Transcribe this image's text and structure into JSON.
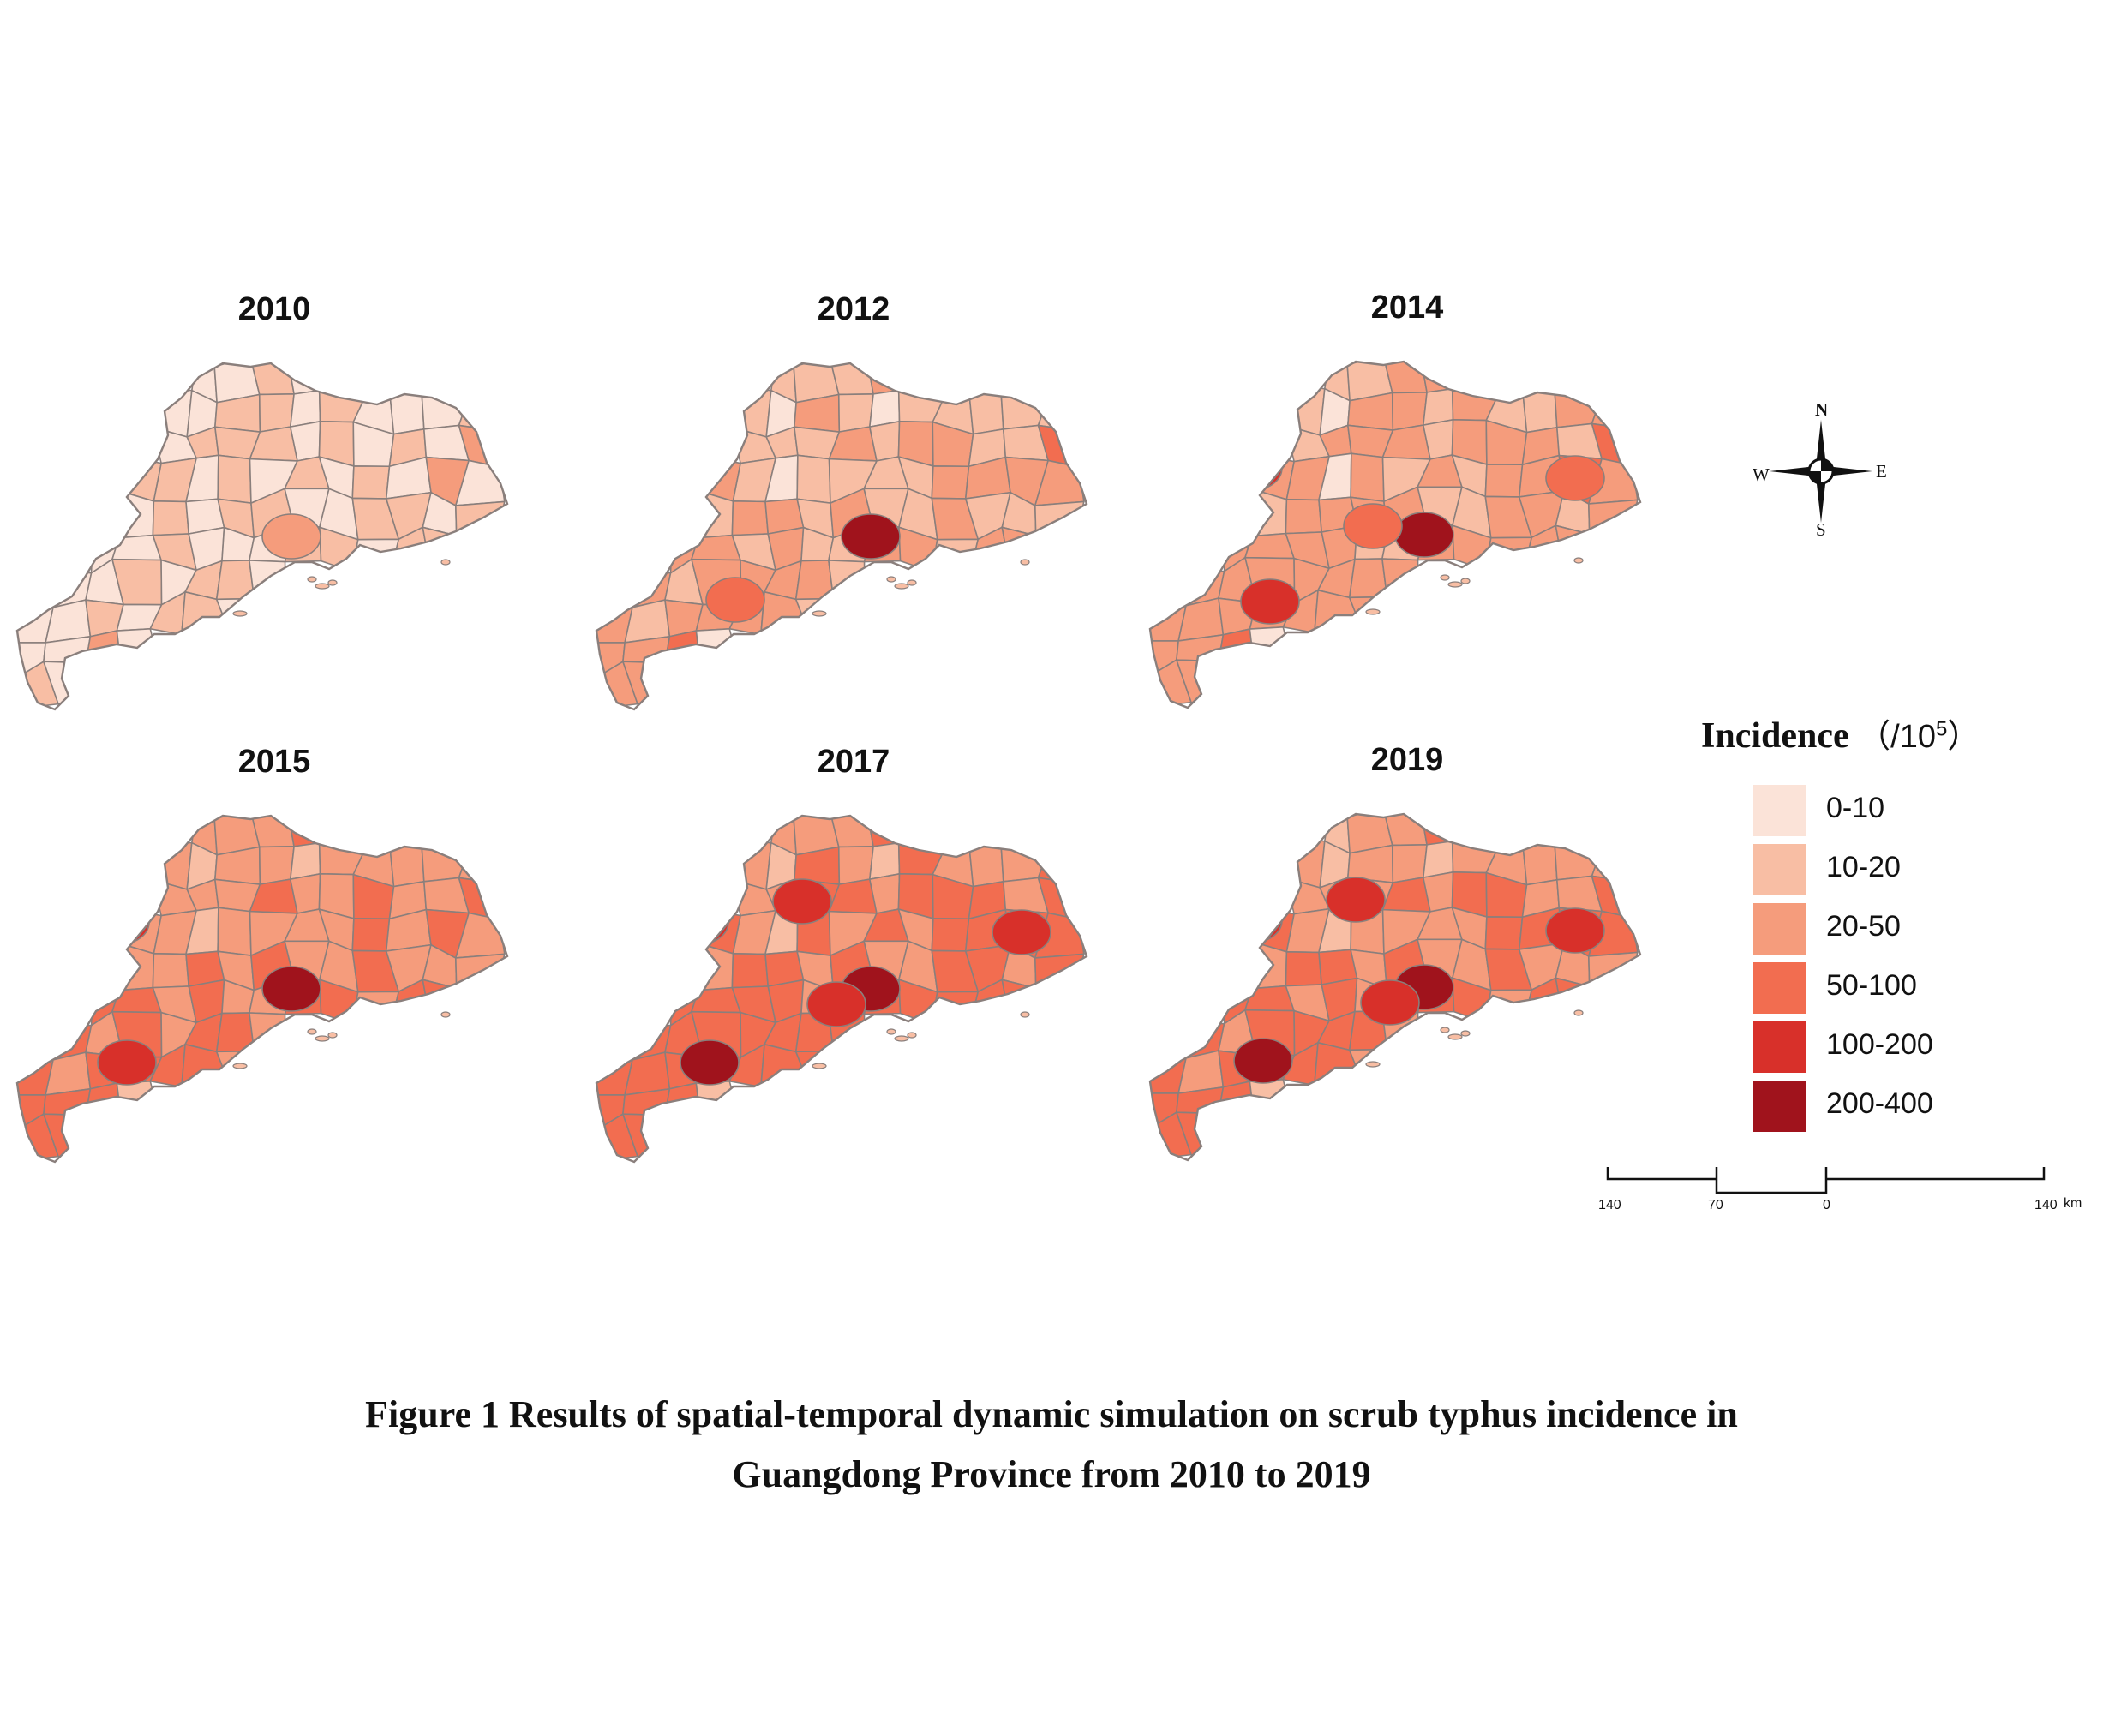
{
  "panels": [
    {
      "title": "2010",
      "regions": [
        0,
        0,
        1,
        0,
        0,
        0,
        1,
        1,
        0,
        1,
        0,
        0,
        0,
        1,
        0,
        1,
        1,
        1,
        0,
        1,
        0,
        1,
        0,
        2,
        1,
        1,
        0,
        1,
        0,
        1,
        0,
        1,
        0,
        2,
        0,
        0,
        1,
        0,
        1,
        1,
        0,
        0,
        1,
        1,
        0,
        1,
        0,
        0,
        1,
        0,
        0,
        0,
        1,
        1,
        0,
        1,
        1,
        0,
        0,
        1,
        0,
        1,
        1,
        0,
        0,
        0,
        1,
        0,
        1,
        1,
        0,
        0,
        0,
        2,
        0,
        1,
        0,
        1,
        1,
        0,
        0,
        0,
        1,
        0,
        1,
        1,
        0,
        0,
        1,
        0,
        1,
        0,
        0,
        1,
        0,
        1,
        1,
        0,
        0,
        1,
        0,
        1,
        0,
        1,
        1,
        0,
        0,
        0,
        1,
        1,
        0,
        1,
        0,
        1,
        0,
        1,
        1,
        0,
        0,
        1,
        1,
        0,
        1,
        0,
        1,
        0,
        1,
        2,
        1,
        0,
        0,
        1,
        1,
        0,
        1,
        0,
        1,
        0,
        1,
        1,
        2,
        1,
        0,
        1,
        1,
        1,
        0,
        0,
        1,
        0,
        1,
        2,
        1,
        0,
        1,
        1,
        1,
        0,
        2,
        1,
        1,
        1,
        0,
        2,
        1,
        1,
        1,
        1,
        2,
        2,
        1,
        2,
        1,
        1,
        1,
        1,
        2,
        1,
        2,
        2,
        2,
        1,
        1,
        1,
        1,
        1,
        1,
        2,
        2,
        1,
        2,
        1,
        1,
        0,
        1,
        1,
        2,
        1,
        1,
        1
      ],
      "hotspots": [
        [
          8.0,
          5.15,
          2
        ]
      ]
    },
    {
      "title": "2012",
      "regions": [
        1,
        1,
        1,
        2,
        1,
        0,
        2,
        1,
        0,
        1,
        1,
        1,
        1,
        1,
        1,
        1,
        1,
        2,
        1,
        2,
        2,
        1,
        1,
        3,
        2,
        1,
        0,
        1,
        1,
        1,
        1,
        2,
        2,
        2,
        2,
        1,
        2,
        2,
        1,
        2,
        1,
        1,
        2,
        1,
        1,
        1,
        2,
        2,
        1,
        2,
        1,
        1,
        2,
        2,
        1,
        2,
        2,
        2,
        1,
        2,
        2,
        2,
        2,
        1,
        2,
        1,
        2,
        2,
        2,
        2,
        1,
        2,
        2,
        3,
        0,
        2,
        2,
        2,
        2,
        2,
        1,
        2,
        2,
        2,
        2,
        2,
        1,
        2,
        2,
        2,
        2,
        1,
        1,
        2,
        2,
        2,
        2,
        2,
        2,
        2,
        2,
        1,
        1,
        2,
        2,
        1,
        1,
        2,
        2,
        2,
        2,
        2,
        1,
        2,
        2,
        2,
        2,
        2,
        2,
        2,
        2,
        2,
        2,
        2,
        1,
        1,
        2,
        3,
        2,
        2,
        2,
        2,
        2,
        2,
        2,
        1,
        2,
        2,
        2,
        2,
        2,
        2,
        2,
        2,
        2,
        2,
        2,
        2,
        2,
        1,
        2,
        3,
        2,
        2,
        2,
        2,
        2,
        2,
        3,
        2,
        2,
        2,
        1,
        2,
        2,
        2,
        2,
        2,
        2,
        2,
        2,
        2,
        2,
        2,
        2,
        2,
        2,
        2,
        2,
        3,
        2,
        2,
        2,
        2,
        2,
        1,
        2,
        2,
        2,
        2,
        2,
        2,
        2,
        1,
        2,
        2,
        2,
        2,
        2,
        2
      ],
      "hotspots": [
        [
          8.0,
          5.15,
          5
        ],
        [
          4.05,
          7.0,
          3
        ]
      ]
    },
    {
      "title": "2014",
      "regions": [
        1,
        1,
        2,
        2,
        1,
        0,
        2,
        2,
        1,
        2,
        1,
        1,
        2,
        2,
        1,
        2,
        2,
        2,
        1,
        2,
        2,
        2,
        1,
        3,
        2,
        2,
        0,
        2,
        1,
        2,
        1,
        2,
        2,
        3,
        2,
        1,
        2,
        2,
        2,
        2,
        1,
        1,
        2,
        2,
        1,
        2,
        2,
        2,
        2,
        2,
        1,
        1,
        2,
        2,
        2,
        2,
        2,
        2,
        2,
        2,
        2,
        2,
        2,
        2,
        2,
        2,
        2,
        2,
        2,
        2,
        2,
        2,
        2,
        3,
        0,
        2,
        2,
        2,
        2,
        2,
        2,
        2,
        2,
        2,
        2,
        2,
        2,
        2,
        2,
        2,
        2,
        2,
        2,
        2,
        2,
        2,
        2,
        2,
        2,
        2,
        2,
        2,
        2,
        2,
        2,
        2,
        2,
        2,
        2,
        2,
        2,
        2,
        2,
        2,
        2,
        2,
        2,
        2,
        2,
        2,
        2,
        2,
        2,
        2,
        2,
        2,
        2,
        3,
        2,
        2,
        2,
        2,
        2,
        2,
        2,
        2,
        2,
        2,
        2,
        2,
        2,
        2,
        2,
        2,
        2,
        2,
        2,
        2,
        2,
        2,
        2,
        3,
        2,
        2,
        2,
        2,
        2,
        2,
        3,
        2,
        2,
        2,
        2,
        2,
        2,
        2,
        2,
        2,
        2,
        2,
        2,
        2,
        2,
        2,
        2,
        2,
        2,
        2,
        2,
        3,
        2,
        2,
        2,
        2,
        2,
        2,
        2,
        2,
        2,
        2,
        2,
        2,
        2,
        2,
        2,
        2,
        2,
        2,
        2,
        2
      ],
      "hotspots": [
        [
          8.0,
          5.15,
          5
        ],
        [
          3.0,
          3.2,
          4
        ],
        [
          3.5,
          7.1,
          4
        ],
        [
          6.5,
          4.9,
          3
        ],
        [
          12.4,
          3.5,
          3
        ]
      ]
    },
    {
      "title": "2015",
      "regions": [
        2,
        2,
        2,
        3,
        2,
        1,
        2,
        2,
        1,
        2,
        2,
        2,
        2,
        2,
        2,
        2,
        2,
        3,
        2,
        2,
        3,
        2,
        2,
        3,
        2,
        2,
        1,
        2,
        2,
        2,
        2,
        3,
        2,
        3,
        2,
        2,
        2,
        3,
        2,
        3,
        2,
        2,
        3,
        2,
        2,
        2,
        3,
        3,
        2,
        3,
        2,
        2,
        3,
        3,
        2,
        3,
        3,
        3,
        2,
        3,
        2,
        3,
        3,
        2,
        3,
        2,
        3,
        3,
        3,
        3,
        2,
        3,
        3,
        3,
        1,
        3,
        3,
        3,
        3,
        3,
        2,
        3,
        3,
        3,
        3,
        3,
        2,
        3,
        3,
        3,
        3,
        2,
        2,
        3,
        3,
        3,
        3,
        3,
        3,
        3,
        3,
        2,
        2,
        3,
        3,
        2,
        2,
        3,
        3,
        3,
        3,
        3,
        2,
        3,
        3,
        3,
        3,
        3,
        3,
        3,
        3,
        3,
        3,
        3,
        2,
        2,
        3,
        3,
        3,
        3,
        3,
        3,
        3,
        3,
        3,
        2,
        3,
        3,
        3,
        3,
        3,
        3,
        3,
        3,
        3,
        3,
        3,
        3,
        3,
        2,
        3,
        3,
        3,
        3,
        3,
        3,
        3,
        3,
        3,
        3,
        3,
        3,
        2,
        3,
        3,
        3,
        3,
        3,
        3,
        3,
        3,
        3,
        3,
        3,
        3,
        3,
        3,
        3,
        3,
        3,
        3,
        3,
        3,
        3,
        3,
        2,
        3,
        3,
        3,
        3,
        3,
        3,
        3,
        2,
        3,
        3,
        3,
        3,
        3,
        3
      ],
      "hotspots": [
        [
          8.0,
          5.15,
          5
        ],
        [
          3.0,
          3.2,
          4
        ],
        [
          3.2,
          7.3,
          4
        ]
      ]
    },
    {
      "title": "2017",
      "regions": [
        2,
        2,
        2,
        3,
        2,
        1,
        3,
        2,
        1,
        3,
        2,
        2,
        2,
        3,
        2,
        2,
        3,
        3,
        2,
        3,
        3,
        3,
        2,
        3,
        3,
        2,
        1,
        3,
        2,
        3,
        2,
        3,
        3,
        3,
        3,
        2,
        3,
        3,
        2,
        3,
        2,
        2,
        3,
        3,
        2,
        3,
        3,
        3,
        3,
        3,
        2,
        2,
        3,
        3,
        3,
        3,
        3,
        3,
        3,
        3,
        3,
        3,
        3,
        3,
        3,
        3,
        3,
        3,
        3,
        3,
        3,
        3,
        3,
        3,
        1,
        3,
        3,
        3,
        3,
        3,
        3,
        3,
        3,
        3,
        3,
        3,
        3,
        3,
        3,
        3,
        3,
        3,
        3,
        3,
        3,
        3,
        3,
        3,
        3,
        3,
        3,
        3,
        3,
        3,
        3,
        3,
        3,
        3,
        3,
        3,
        3,
        3,
        3,
        3,
        3,
        3,
        3,
        3,
        3,
        3,
        3,
        3,
        3,
        3,
        3,
        3,
        3,
        3,
        3,
        3,
        3,
        3,
        3,
        3,
        3,
        3,
        3,
        3,
        3,
        3,
        3,
        3,
        3,
        3,
        3,
        3,
        3,
        3,
        3,
        3,
        3,
        3,
        3,
        3,
        3,
        3,
        3,
        3,
        3,
        3,
        3,
        3,
        3,
        3,
        3,
        3,
        3,
        3,
        3,
        3,
        3,
        3,
        3,
        3,
        3,
        3,
        3,
        3,
        3,
        3,
        3,
        3,
        3,
        3,
        3,
        3,
        3,
        3,
        3,
        3,
        3,
        3,
        3,
        3,
        3,
        3,
        3,
        3,
        3,
        3
      ],
      "hotspots": [
        [
          8.0,
          5.15,
          5
        ],
        [
          3.0,
          3.2,
          4
        ],
        [
          6.0,
          2.6,
          4
        ],
        [
          3.3,
          7.3,
          5
        ],
        [
          7.0,
          5.6,
          4
        ],
        [
          12.4,
          3.5,
          4
        ]
      ]
    },
    {
      "title": "2019",
      "regions": [
        1,
        2,
        2,
        3,
        2,
        1,
        2,
        2,
        1,
        2,
        2,
        2,
        2,
        2,
        2,
        2,
        2,
        3,
        2,
        3,
        3,
        2,
        2,
        3,
        3,
        2,
        1,
        2,
        2,
        2,
        2,
        3,
        3,
        3,
        3,
        2,
        3,
        3,
        2,
        3,
        2,
        2,
        3,
        2,
        2,
        2,
        3,
        3,
        2,
        3,
        2,
        2,
        3,
        3,
        2,
        3,
        3,
        3,
        2,
        3,
        3,
        3,
        3,
        2,
        3,
        2,
        3,
        3,
        3,
        3,
        2,
        3,
        3,
        3,
        1,
        3,
        3,
        3,
        3,
        3,
        2,
        3,
        3,
        3,
        3,
        3,
        2,
        3,
        3,
        3,
        3,
        2,
        2,
        3,
        3,
        3,
        3,
        3,
        3,
        3,
        3,
        2,
        2,
        3,
        3,
        2,
        2,
        3,
        3,
        3,
        3,
        3,
        2,
        3,
        3,
        3,
        3,
        3,
        3,
        3,
        3,
        3,
        3,
        3,
        2,
        2,
        3,
        3,
        3,
        3,
        3,
        3,
        3,
        3,
        3,
        2,
        3,
        3,
        3,
        3,
        3,
        3,
        3,
        3,
        3,
        3,
        3,
        3,
        3,
        2,
        3,
        3,
        3,
        3,
        3,
        3,
        3,
        3,
        3,
        3,
        3,
        3,
        2,
        3,
        3,
        3,
        3,
        3,
        3,
        3,
        3,
        3,
        3,
        3,
        3,
        3,
        3,
        3,
        3,
        3,
        3,
        3,
        3,
        3,
        3,
        2,
        3,
        3,
        3,
        3,
        3,
        3,
        3,
        2,
        3,
        3,
        3,
        3,
        3,
        3
      ],
      "hotspots": [
        [
          8.0,
          5.15,
          5
        ],
        [
          3.0,
          3.2,
          4
        ],
        [
          6.0,
          2.6,
          4
        ],
        [
          3.3,
          7.3,
          5
        ],
        [
          7.0,
          5.6,
          4
        ],
        [
          12.4,
          3.5,
          4
        ]
      ]
    }
  ],
  "legend": {
    "title": "Incidence",
    "unit_prefix": "（/10",
    "unit_sup": "5",
    "unit_suffix": "）",
    "classes": [
      {
        "label": "0-10",
        "color": "#fbe3d8"
      },
      {
        "label": "10-20",
        "color": "#f8bea4"
      },
      {
        "label": "20-50",
        "color": "#f59c7c"
      },
      {
        "label": "50-100",
        "color": "#f26d50"
      },
      {
        "label": "100-200",
        "color": "#d8302a"
      },
      {
        "label": "200-400",
        "color": "#a0131c"
      }
    ]
  },
  "compass": {
    "n": "N",
    "s": "S",
    "e": "E",
    "w": "W"
  },
  "scale_bar": {
    "ticks": [
      "140",
      "70",
      "0",
      "140"
    ],
    "unit": "km"
  },
  "caption": {
    "line1": "Figure 1  Results of spatial-temporal dynamic simulation on scrub typhus incidence in",
    "line2": "Guangdong Province from 2010 to 2019"
  },
  "colors": {
    "border": "#8a7f7c",
    "background": "#ffffff"
  }
}
